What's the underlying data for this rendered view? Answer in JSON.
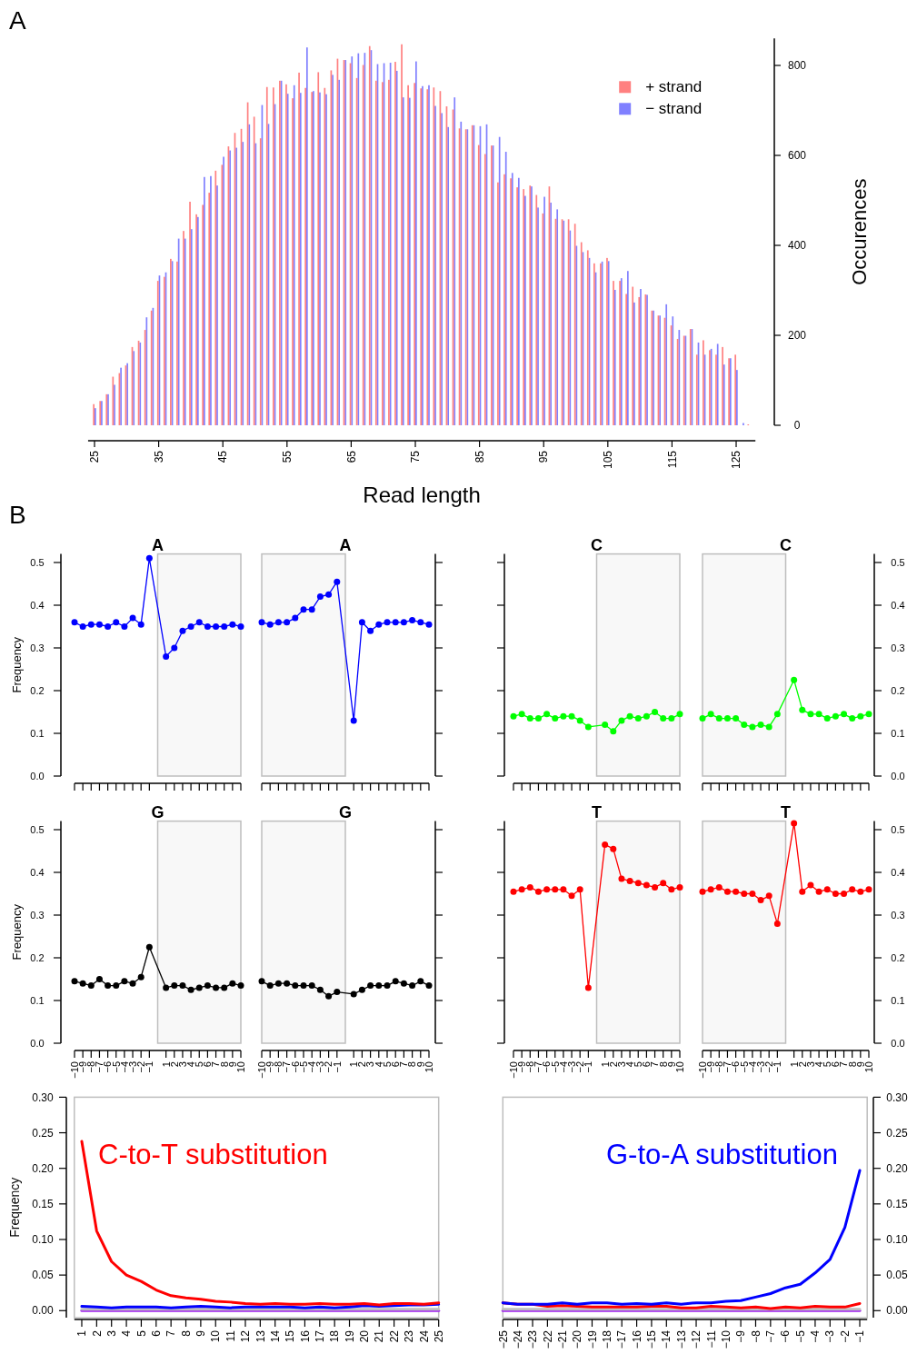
{
  "chart_data": [
    {
      "type": "bar",
      "annotations": [
        "A"
      ],
      "xlabel": "Read length",
      "y2label": "Occurences",
      "legend": "top right",
      "x": [
        25,
        26,
        27,
        28,
        29,
        30,
        31,
        32,
        33,
        34,
        35,
        36,
        37,
        38,
        39,
        40,
        41,
        42,
        43,
        44,
        45,
        46,
        47,
        48,
        49,
        50,
        51,
        52,
        53,
        54,
        55,
        56,
        57,
        58,
        59,
        60,
        61,
        62,
        63,
        64,
        65,
        66,
        67,
        68,
        69,
        70,
        71,
        72,
        73,
        74,
        75,
        76,
        77,
        78,
        79,
        80,
        81,
        82,
        83,
        84,
        85,
        86,
        87,
        88,
        89,
        90,
        91,
        92,
        93,
        94,
        95,
        96,
        97,
        98,
        99,
        100,
        101,
        102,
        103,
        104,
        105,
        106,
        107,
        108,
        109,
        110,
        111,
        112,
        113,
        114,
        115,
        116,
        117,
        118,
        119,
        120,
        121,
        122,
        123,
        124,
        125,
        126,
        127
      ],
      "xlim": [
        24,
        128
      ],
      "xticks": [
        25,
        35,
        45,
        55,
        65,
        75,
        85,
        95,
        105,
        115,
        125
      ],
      "y2lim": [
        0,
        860
      ],
      "y2ticks": [
        0,
        200,
        400,
        600,
        800
      ],
      "series": [
        {
          "name": "+ strand",
          "color": "#ff8080",
          "axis": "y2",
          "values": [
            47,
            54,
            69,
            108,
            116,
            133,
            174,
            188,
            212,
            255,
            321,
            330,
            370,
            364,
            432,
            497,
            469,
            490,
            517,
            566,
            579,
            620,
            650,
            659,
            718,
            686,
            638,
            752,
            751,
            766,
            758,
            727,
            784,
            750,
            741,
            785,
            750,
            789,
            815,
            812,
            805,
            772,
            801,
            843,
            766,
            763,
            768,
            808,
            847,
            756,
            761,
            749,
            747,
            751,
            743,
            709,
            702,
            660,
            658,
            667,
            623,
            603,
            622,
            540,
            558,
            549,
            529,
            525,
            533,
            512,
            471,
            531,
            459,
            458,
            458,
            448,
            407,
            389,
            360,
            360,
            372,
            321,
            321,
            292,
            308,
            285,
            291,
            255,
            244,
            239,
            222,
            192,
            199,
            214,
            157,
            189,
            167,
            157,
            174,
            149,
            157,
            0,
            2
          ]
        },
        {
          "name": "− strand",
          "color": "#8080ff",
          "axis": "y2",
          "values": [
            38,
            54,
            69,
            90,
            128,
            138,
            165,
            184,
            240,
            261,
            333,
            340,
            365,
            415,
            415,
            436,
            463,
            552,
            554,
            533,
            597,
            611,
            617,
            630,
            669,
            627,
            712,
            670,
            714,
            766,
            737,
            756,
            739,
            840,
            743,
            740,
            736,
            779,
            768,
            812,
            820,
            827,
            828,
            834,
            803,
            805,
            806,
            788,
            729,
            728,
            809,
            754,
            756,
            710,
            694,
            663,
            729,
            675,
            658,
            667,
            665,
            669,
            622,
            641,
            608,
            561,
            550,
            510,
            531,
            484,
            508,
            495,
            480,
            455,
            433,
            399,
            385,
            372,
            340,
            364,
            365,
            301,
            327,
            343,
            273,
            303,
            290,
            255,
            244,
            269,
            242,
            212,
            199,
            214,
            184,
            157,
            170,
            181,
            135,
            149,
            123,
            5,
            0
          ]
        }
      ]
    },
    {
      "type": "line",
      "title": "A",
      "annotations": [
        "B"
      ],
      "ylabel": "Frequency",
      "marker": "circle",
      "tick_labels": "y",
      "x": [
        -10,
        -9,
        -8,
        -7,
        -6,
        -5,
        -4,
        -3,
        -2,
        -1,
        1,
        2,
        3,
        4,
        5,
        6,
        7,
        8,
        9,
        10
      ],
      "xlim": [
        -10,
        10
      ],
      "xticks": [
        -10,
        -9,
        -8,
        -7,
        -6,
        -5,
        -4,
        -3,
        -2,
        -1,
        1,
        2,
        3,
        4,
        5,
        6,
        7,
        8,
        9,
        10
      ],
      "ylim": [
        0,
        0.52
      ],
      "yticks": [
        {
          "value": 0,
          "label": "0.0"
        },
        0.1,
        0.2,
        0.3,
        0.4,
        0.5
      ],
      "bands": [
        {
          "axis": "x",
          "from": 0,
          "to": 10,
          "color": "#bebebe"
        }
      ],
      "series": [
        {
          "color": "#0000ff",
          "values": [
            0.36,
            0.35,
            0.355,
            0.355,
            0.35,
            0.36,
            0.35,
            0.37,
            0.355,
            0.51,
            0.28,
            0.3,
            0.34,
            0.35,
            0.36,
            0.35,
            0.35,
            0.35,
            0.355,
            0.35
          ]
        }
      ]
    },
    {
      "type": "line",
      "title": "A",
      "marker": "circle",
      "tick_labels": false,
      "x": [
        -10,
        -9,
        -8,
        -7,
        -6,
        -5,
        -4,
        -3,
        -2,
        -1,
        1,
        2,
        3,
        4,
        5,
        6,
        7,
        8,
        9,
        10
      ],
      "xlim": [
        -10,
        10
      ],
      "xticks": [
        -10,
        -9,
        -8,
        -7,
        -6,
        -5,
        -4,
        -3,
        -2,
        -1,
        1,
        2,
        3,
        4,
        5,
        6,
        7,
        8,
        9,
        10
      ],
      "y2lim": [
        0,
        0.52
      ],
      "y2ticks": [
        0,
        0.1,
        0.2,
        0.3,
        0.4,
        0.5
      ],
      "bands": [
        {
          "axis": "x",
          "from": -10,
          "to": 0,
          "color": "#bebebe"
        }
      ],
      "series": [
        {
          "color": "#0000ff",
          "axis": "y2",
          "values": [
            0.36,
            0.355,
            0.36,
            0.36,
            0.37,
            0.39,
            0.39,
            0.42,
            0.425,
            0.455,
            0.13,
            0.36,
            0.34,
            0.355,
            0.36,
            0.36,
            0.36,
            0.365,
            0.36,
            0.355
          ]
        }
      ]
    },
    {
      "type": "line",
      "title": "C",
      "marker": "circle",
      "tick_labels": false,
      "x": [
        -10,
        -9,
        -8,
        -7,
        -6,
        -5,
        -4,
        -3,
        -2,
        -1,
        1,
        2,
        3,
        4,
        5,
        6,
        7,
        8,
        9,
        10
      ],
      "xlim": [
        -10,
        10
      ],
      "xticks": [
        -10,
        -9,
        -8,
        -7,
        -6,
        -5,
        -4,
        -3,
        -2,
        -1,
        1,
        2,
        3,
        4,
        5,
        6,
        7,
        8,
        9,
        10
      ],
      "ylim": [
        0,
        0.52
      ],
      "yticks": [
        0,
        0.1,
        0.2,
        0.3,
        0.4,
        0.5
      ],
      "bands": [
        {
          "axis": "x",
          "from": 0,
          "to": 10,
          "color": "#bebebe"
        }
      ],
      "series": [
        {
          "color": "#00ff00",
          "values": [
            0.14,
            0.145,
            0.135,
            0.135,
            0.145,
            0.135,
            0.14,
            0.14,
            0.13,
            0.115,
            0.12,
            0.105,
            0.13,
            0.14,
            0.135,
            0.14,
            0.15,
            0.135,
            0.135,
            0.145
          ]
        }
      ]
    },
    {
      "type": "line",
      "title": "C",
      "marker": "circle",
      "tick_labels": "y",
      "x": [
        -10,
        -9,
        -8,
        -7,
        -6,
        -5,
        -4,
        -3,
        -2,
        -1,
        1,
        2,
        3,
        4,
        5,
        6,
        7,
        8,
        9,
        10
      ],
      "xlim": [
        -10,
        10
      ],
      "xticks": [
        -10,
        -9,
        -8,
        -7,
        -6,
        -5,
        -4,
        -3,
        -2,
        -1,
        1,
        2,
        3,
        4,
        5,
        6,
        7,
        8,
        9,
        10
      ],
      "y2lim": [
        0,
        0.52
      ],
      "y2ticks": [
        {
          "value": 0,
          "label": "0.0"
        },
        0.1,
        0.2,
        0.3,
        0.4,
        0.5
      ],
      "bands": [
        {
          "axis": "x",
          "from": -10,
          "to": 0,
          "color": "#bebebe"
        }
      ],
      "series": [
        {
          "color": "#00ff00",
          "axis": "y2",
          "values": [
            0.135,
            0.145,
            0.135,
            0.135,
            0.135,
            0.12,
            0.115,
            0.12,
            0.115,
            0.145,
            0.225,
            0.155,
            0.145,
            0.145,
            0.135,
            0.14,
            0.145,
            0.135,
            0.14,
            0.145
          ]
        }
      ]
    },
    {
      "type": "line",
      "title": "G",
      "ylabel": "Frequency",
      "marker": "circle",
      "x": [
        -10,
        -9,
        -8,
        -7,
        -6,
        -5,
        -4,
        -3,
        -2,
        -1,
        1,
        2,
        3,
        4,
        5,
        6,
        7,
        8,
        9,
        10
      ],
      "xlim": [
        -10,
        10
      ],
      "xticks": [
        {
          "value": -10,
          "label": "−10"
        },
        {
          "value": -9,
          "label": "−9"
        },
        {
          "value": -8,
          "label": "−8"
        },
        {
          "value": -7,
          "label": "−7"
        },
        {
          "value": -6,
          "label": "−6"
        },
        {
          "value": -5,
          "label": "−5"
        },
        {
          "value": -4,
          "label": "−4"
        },
        {
          "value": -3,
          "label": "−3"
        },
        {
          "value": -2,
          "label": "−2"
        },
        {
          "value": -1,
          "label": "−1"
        },
        1,
        2,
        3,
        4,
        5,
        6,
        7,
        8,
        9,
        10
      ],
      "ylim": [
        0,
        0.52
      ],
      "yticks": [
        {
          "value": 0,
          "label": "0.0"
        },
        0.1,
        0.2,
        0.3,
        0.4,
        0.5
      ],
      "bands": [
        {
          "axis": "x",
          "from": 0,
          "to": 10,
          "color": "#bebebe"
        }
      ],
      "series": [
        {
          "color": "#000000",
          "values": [
            0.145,
            0.14,
            0.135,
            0.15,
            0.135,
            0.135,
            0.145,
            0.14,
            0.155,
            0.225,
            0.13,
            0.135,
            0.135,
            0.125,
            0.13,
            0.135,
            0.13,
            0.13,
            0.14,
            0.135
          ]
        }
      ]
    },
    {
      "type": "line",
      "title": "G",
      "marker": "circle",
      "tick_labels": "x",
      "x": [
        -10,
        -9,
        -8,
        -7,
        -6,
        -5,
        -4,
        -3,
        -2,
        -1,
        1,
        2,
        3,
        4,
        5,
        6,
        7,
        8,
        9,
        10
      ],
      "xlim": [
        -10,
        10
      ],
      "xticks": [
        {
          "value": -10,
          "label": "−10"
        },
        {
          "value": -9,
          "label": "−9"
        },
        {
          "value": -8,
          "label": "−8"
        },
        {
          "value": -7,
          "label": "−7"
        },
        {
          "value": -6,
          "label": "−6"
        },
        {
          "value": -5,
          "label": "−5"
        },
        {
          "value": -4,
          "label": "−4"
        },
        {
          "value": -3,
          "label": "−3"
        },
        {
          "value": -2,
          "label": "−2"
        },
        {
          "value": -1,
          "label": "−1"
        },
        1,
        2,
        3,
        4,
        5,
        6,
        7,
        8,
        9,
        10
      ],
      "y2lim": [
        0,
        0.52
      ],
      "y2ticks": [
        0,
        0.1,
        0.2,
        0.3,
        0.4,
        0.5
      ],
      "bands": [
        {
          "axis": "x",
          "from": -10,
          "to": 0,
          "color": "#bebebe"
        }
      ],
      "series": [
        {
          "color": "#000000",
          "axis": "y2",
          "values": [
            0.145,
            0.135,
            0.14,
            0.14,
            0.135,
            0.135,
            0.135,
            0.125,
            0.11,
            0.12,
            0.115,
            0.125,
            0.135,
            0.135,
            0.135,
            0.145,
            0.14,
            0.135,
            0.145,
            0.135
          ]
        }
      ]
    },
    {
      "type": "line",
      "title": "T",
      "marker": "circle",
      "tick_labels": "x",
      "x": [
        -10,
        -9,
        -8,
        -7,
        -6,
        -5,
        -4,
        -3,
        -2,
        -1,
        1,
        2,
        3,
        4,
        5,
        6,
        7,
        8,
        9,
        10
      ],
      "xlim": [
        -10,
        10
      ],
      "xticks": [
        {
          "value": -10,
          "label": "−10"
        },
        {
          "value": -9,
          "label": "−9"
        },
        {
          "value": -8,
          "label": "−8"
        },
        {
          "value": -7,
          "label": "−7"
        },
        {
          "value": -6,
          "label": "−6"
        },
        {
          "value": -5,
          "label": "−5"
        },
        {
          "value": -4,
          "label": "−4"
        },
        {
          "value": -3,
          "label": "−3"
        },
        {
          "value": -2,
          "label": "−2"
        },
        {
          "value": -1,
          "label": "−1"
        },
        1,
        2,
        3,
        4,
        5,
        6,
        7,
        8,
        9,
        10
      ],
      "ylim": [
        0,
        0.52
      ],
      "yticks": [
        0,
        0.1,
        0.2,
        0.3,
        0.4,
        0.5
      ],
      "bands": [
        {
          "axis": "x",
          "from": 0,
          "to": 10,
          "color": "#bebebe"
        }
      ],
      "series": [
        {
          "color": "#ff0000",
          "values": [
            0.355,
            0.36,
            0.365,
            0.355,
            0.36,
            0.36,
            0.36,
            0.345,
            0.36,
            0.13,
            0.465,
            0.455,
            0.385,
            0.38,
            0.375,
            0.37,
            0.365,
            0.375,
            0.36,
            0.365
          ]
        }
      ]
    },
    {
      "type": "line",
      "title": "T",
      "marker": "circle",
      "x": [
        -10,
        -9,
        -8,
        -7,
        -6,
        -5,
        -4,
        -3,
        -2,
        -1,
        1,
        2,
        3,
        4,
        5,
        6,
        7,
        8,
        9,
        10
      ],
      "xlim": [
        -10,
        10
      ],
      "xticks": [
        {
          "value": -10,
          "label": "−10"
        },
        {
          "value": -9,
          "label": "−9"
        },
        {
          "value": -8,
          "label": "−8"
        },
        {
          "value": -7,
          "label": "−7"
        },
        {
          "value": -6,
          "label": "−6"
        },
        {
          "value": -5,
          "label": "−5"
        },
        {
          "value": -4,
          "label": "−4"
        },
        {
          "value": -3,
          "label": "−3"
        },
        {
          "value": -2,
          "label": "−2"
        },
        {
          "value": -1,
          "label": "−1"
        },
        1,
        2,
        3,
        4,
        5,
        6,
        7,
        8,
        9,
        10
      ],
      "y2lim": [
        0,
        0.52
      ],
      "y2ticks": [
        {
          "value": 0,
          "label": "0.0"
        },
        0.1,
        0.2,
        0.3,
        0.4,
        0.5
      ],
      "bands": [
        {
          "axis": "x",
          "from": -10,
          "to": 0,
          "color": "#bebebe"
        }
      ],
      "series": [
        {
          "color": "#ff0000",
          "axis": "y2",
          "values": [
            0.355,
            0.36,
            0.365,
            0.355,
            0.355,
            0.35,
            0.35,
            0.335,
            0.345,
            0.28,
            0.515,
            0.355,
            0.37,
            0.355,
            0.36,
            0.35,
            0.35,
            0.36,
            0.355,
            0.36
          ]
        }
      ]
    },
    {
      "type": "line",
      "annotations": [
        "C-to-T substitution"
      ],
      "ylabel": "Frequency",
      "x": [
        1,
        2,
        3,
        4,
        5,
        6,
        7,
        8,
        9,
        10,
        11,
        12,
        13,
        14,
        15,
        16,
        17,
        18,
        19,
        20,
        21,
        22,
        23,
        24,
        25
      ],
      "xlim": [
        0.5,
        25
      ],
      "xticks": [
        1,
        2,
        3,
        4,
        5,
        6,
        7,
        8,
        9,
        10,
        11,
        12,
        13,
        14,
        15,
        16,
        17,
        18,
        19,
        20,
        21,
        22,
        23,
        24,
        25
      ],
      "ylim": [
        -0.01,
        0.3
      ],
      "yticks": [
        {
          "value": 0,
          "label": "0.00"
        },
        0.05,
        {
          "value": 0.1,
          "label": "0.10"
        },
        0.15,
        {
          "value": 0.2,
          "label": "0.20"
        },
        0.25,
        {
          "value": 0.3,
          "label": "0.30"
        }
      ],
      "series": [
        {
          "color": "#ff0000",
          "values": [
            0.238,
            0.112,
            0.069,
            0.05,
            0.041,
            0.029,
            0.021,
            0.018,
            0.016,
            0.013,
            0.012,
            0.01,
            0.009,
            0.01,
            0.009,
            0.009,
            0.01,
            0.009,
            0.009,
            0.01,
            0.008,
            0.01,
            0.01,
            0.009,
            0.011
          ]
        },
        {
          "color": "#0000ff",
          "values": [
            0.006,
            0.005,
            0.004,
            0.005,
            0.005,
            0.005,
            0.004,
            0.005,
            0.006,
            0.005,
            0.004,
            0.005,
            0.005,
            0.005,
            0.005,
            0.004,
            0.005,
            0.004,
            0.005,
            0.007,
            0.006,
            0.007,
            0.008,
            0.008,
            0.009
          ]
        },
        {
          "color": "#bebebe",
          "values": [
            0.002,
            0.002,
            0.002,
            0.002,
            0.002,
            0.002,
            0.002,
            0.002,
            0.002,
            0.002,
            0.002,
            0.002,
            0.002,
            0.002,
            0.002,
            0.002,
            0.002,
            0.002,
            0.002,
            0.002,
            0.002,
            0.002,
            0.002,
            0.002,
            0.002
          ]
        },
        {
          "color": "#a020f0",
          "values": [
            0,
            0,
            0,
            0,
            0,
            0,
            0,
            0,
            0,
            0,
            0,
            0,
            0,
            0,
            0,
            0,
            0,
            0,
            0,
            0,
            0,
            0,
            0,
            0,
            0
          ]
        }
      ]
    },
    {
      "type": "line",
      "annotations": [
        "G-to-A substitution"
      ],
      "x": [
        -25,
        -24,
        -23,
        -22,
        -21,
        -20,
        -19,
        -18,
        -17,
        -16,
        -15,
        -14,
        -13,
        -12,
        -11,
        -10,
        -9,
        -8,
        -7,
        -6,
        -5,
        -4,
        -3,
        -2,
        -1
      ],
      "xlim": [
        -25,
        -0.5
      ],
      "xticks": [
        {
          "value": -25,
          "label": "−25"
        },
        {
          "value": -24,
          "label": "−24"
        },
        {
          "value": -23,
          "label": "−23"
        },
        {
          "value": -22,
          "label": "−22"
        },
        {
          "value": -21,
          "label": "−21"
        },
        {
          "value": -20,
          "label": "−20"
        },
        {
          "value": -19,
          "label": "−19"
        },
        {
          "value": -18,
          "label": "−18"
        },
        {
          "value": -17,
          "label": "−17"
        },
        {
          "value": -16,
          "label": "−16"
        },
        {
          "value": -15,
          "label": "−15"
        },
        {
          "value": -14,
          "label": "−14"
        },
        {
          "value": -13,
          "label": "−13"
        },
        {
          "value": -12,
          "label": "−12"
        },
        {
          "value": -11,
          "label": "−11"
        },
        {
          "value": -10,
          "label": "−10"
        },
        {
          "value": -9,
          "label": "−9"
        },
        {
          "value": -8,
          "label": "−8"
        },
        {
          "value": -7,
          "label": "−7"
        },
        {
          "value": -6,
          "label": "−6"
        },
        {
          "value": -5,
          "label": "−5"
        },
        {
          "value": -4,
          "label": "−4"
        },
        {
          "value": -3,
          "label": "−3"
        },
        {
          "value": -2,
          "label": "−2"
        },
        {
          "value": -1,
          "label": "−1"
        }
      ],
      "y2lim": [
        -0.01,
        0.3
      ],
      "y2ticks": [
        {
          "value": 0,
          "label": "0.00"
        },
        0.05,
        {
          "value": 0.1,
          "label": "0.10"
        },
        0.15,
        {
          "value": 0.2,
          "label": "0.20"
        },
        0.25,
        {
          "value": 0.3,
          "label": "0.30"
        }
      ],
      "series": [
        {
          "color": "#0000ff",
          "axis": "y2",
          "values": [
            0.011,
            0.009,
            0.009,
            0.009,
            0.011,
            0.009,
            0.011,
            0.011,
            0.009,
            0.01,
            0.009,
            0.011,
            0.009,
            0.011,
            0.011,
            0.013,
            0.014,
            0.019,
            0.024,
            0.032,
            0.037,
            0.053,
            0.072,
            0.117,
            0.197
          ]
        },
        {
          "color": "#ff0000",
          "axis": "y2",
          "values": [
            0.011,
            0.009,
            0.009,
            0.006,
            0.007,
            0.006,
            0.005,
            0.005,
            0.005,
            0.005,
            0.006,
            0.006,
            0.004,
            0.004,
            0.006,
            0.005,
            0.004,
            0.005,
            0.003,
            0.005,
            0.004,
            0.006,
            0.005,
            0.005,
            0.01
          ]
        },
        {
          "color": "#bebebe",
          "axis": "y2",
          "values": [
            0.002,
            0.002,
            0.002,
            0.002,
            0.002,
            0.002,
            0.002,
            0.002,
            0.002,
            0.002,
            0.002,
            0.002,
            0.002,
            0.002,
            0.002,
            0.002,
            0.002,
            0.002,
            0.002,
            0.002,
            0.002,
            0.002,
            0.002,
            0.002,
            0.002
          ]
        },
        {
          "color": "#a020f0",
          "axis": "y2",
          "values": [
            0,
            0,
            0,
            0,
            0,
            0,
            0,
            0,
            0,
            0,
            0,
            0,
            0,
            0,
            0,
            0,
            0,
            0,
            0,
            0,
            0,
            0,
            0,
            0,
            0
          ]
        }
      ]
    }
  ]
}
